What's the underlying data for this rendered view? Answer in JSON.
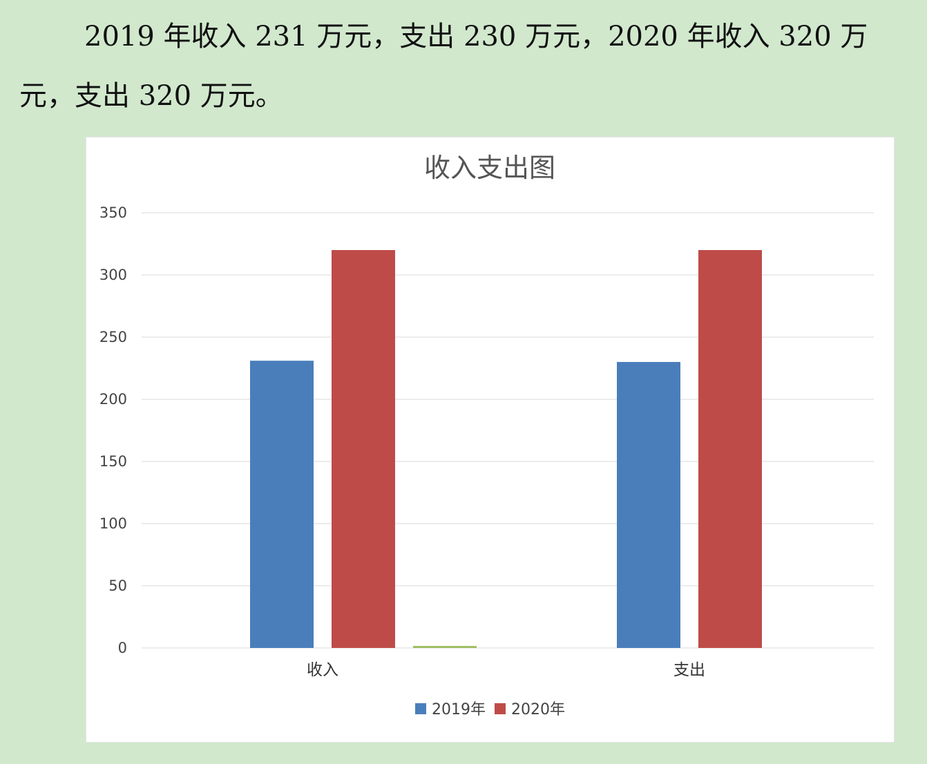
{
  "paragraph": {
    "text": "2019 年收入 231 万元，支出 230 万元，2020 年收入 320 万元，支出 320 万元。"
  },
  "colors": {
    "background": "#d1e8cd",
    "series_2019": "#4a7ebb",
    "series_2020": "#be4b48",
    "stray_bar": "#9bbb59",
    "gridline": "#d9d9d9"
  },
  "chart_data": {
    "type": "bar",
    "title": "收入支出图",
    "xlabel": "",
    "ylabel": "",
    "categories": [
      "收入",
      "支出"
    ],
    "series": [
      {
        "name": "2019年",
        "values": [
          231,
          230
        ]
      },
      {
        "name": "2020年",
        "values": [
          320,
          320
        ]
      }
    ],
    "extra_series": [
      {
        "values": [
          1,
          0
        ]
      }
    ],
    "ylim": [
      0,
      350
    ],
    "yticks": [
      "0",
      "50",
      "100",
      "150",
      "200",
      "250",
      "300",
      "350"
    ],
    "grid": true,
    "legend": "bottom"
  }
}
